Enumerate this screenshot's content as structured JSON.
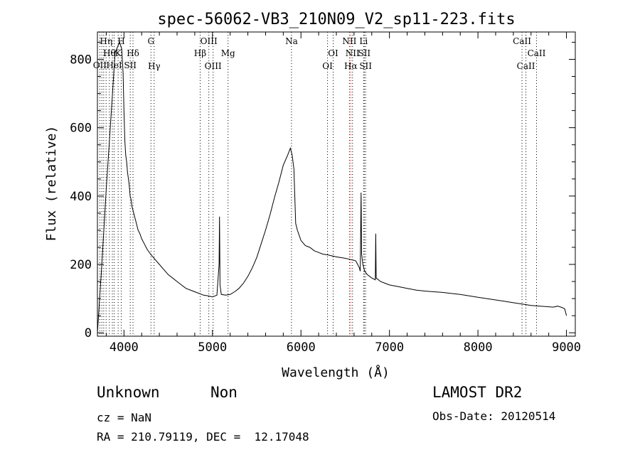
{
  "chart_data": {
    "type": "line",
    "title": "spec-56062-VB3_210N09_V2_sp11-223.fits",
    "xlabel": "Wavelength (Å)",
    "ylabel": "Flux (relative)",
    "xlim": [
      3700,
      9100
    ],
    "ylim": [
      -10,
      880
    ],
    "xticks": [
      4000,
      5000,
      6000,
      7000,
      8000,
      9000
    ],
    "yticks": [
      0,
      200,
      400,
      600,
      800
    ],
    "grid": false,
    "series": [
      {
        "x": [
          3700,
          3750,
          3800,
          3850,
          3900,
          3950,
          3975,
          3990,
          4000,
          4010,
          4020,
          4030,
          4040,
          4050,
          4060,
          4070,
          4080,
          4090,
          4100,
          4120,
          4140,
          4160,
          4180,
          4200,
          4230,
          4260,
          4300,
          4350,
          4400,
          4450,
          4500,
          4550,
          4600,
          4650,
          4700,
          4750,
          4800,
          4850,
          4900,
          4950,
          5000,
          5050,
          5075,
          5080,
          5085,
          5100,
          5150,
          5200,
          5250,
          5300,
          5350,
          5400,
          5450,
          5500,
          5550,
          5600,
          5650,
          5700,
          5750,
          5800,
          5850,
          5880,
          5900,
          5920,
          5940,
          5960,
          5980,
          6000,
          6050,
          6100,
          6150,
          6200,
          6250,
          6300,
          6350,
          6400,
          6450,
          6500,
          6550,
          6580,
          6600,
          6620,
          6640,
          6660,
          6670,
          6680,
          6685,
          6690,
          6700,
          6720,
          6750,
          6800,
          6840,
          6845,
          6850,
          6900,
          6950,
          7000,
          7100,
          7200,
          7300,
          7400,
          7500,
          7600,
          7700,
          7800,
          7900,
          8000,
          8100,
          8200,
          8300,
          8400,
          8500,
          8600,
          8700,
          8800,
          8850,
          8900,
          8950,
          8980,
          9000
        ],
        "values": [
          0,
          200,
          420,
          620,
          820,
          850,
          830,
          760,
          650,
          560,
          520,
          500,
          470,
          450,
          430,
          400,
          390,
          370,
          360,
          340,
          320,
          300,
          290,
          275,
          260,
          245,
          230,
          215,
          200,
          185,
          170,
          160,
          150,
          140,
          130,
          125,
          120,
          115,
          110,
          108,
          105,
          110,
          200,
          340,
          140,
          112,
          110,
          112,
          120,
          130,
          145,
          165,
          190,
          220,
          260,
          300,
          345,
          395,
          440,
          490,
          520,
          540,
          520,
          480,
          320,
          300,
          285,
          270,
          255,
          250,
          240,
          235,
          230,
          228,
          225,
          222,
          220,
          218,
          215,
          213,
          212,
          210,
          200,
          190,
          180,
          410,
          230,
          220,
          200,
          180,
          170,
          160,
          155,
          290,
          160,
          150,
          145,
          140,
          135,
          130,
          125,
          122,
          120,
          118,
          115,
          112,
          108,
          104,
          100,
          96,
          92,
          88,
          84,
          80,
          78,
          76,
          75,
          78,
          74,
          70,
          50
        ]
      }
    ],
    "lines": [
      {
        "w": 3727,
        "name": "OII",
        "row": 3,
        "color": "#000000"
      },
      {
        "w": 3750,
        "name": "",
        "row": 0,
        "color": "#000000"
      },
      {
        "w": 3771,
        "name": "",
        "row": 0,
        "color": "#000000"
      },
      {
        "w": 3798,
        "name": "Hη",
        "row": 1,
        "color": "#000000"
      },
      {
        "w": 3835,
        "name": "Hθ",
        "row": 2,
        "color": "#000000"
      },
      {
        "w": 3869,
        "name": "",
        "row": 0,
        "color": "#000000"
      },
      {
        "w": 3889,
        "name": "HeI",
        "row": 3,
        "color": "#000000"
      },
      {
        "w": 3934,
        "name": "K",
        "row": 2,
        "color": "#000000"
      },
      {
        "w": 3969,
        "name": "H",
        "row": 1,
        "color": "#000000"
      },
      {
        "w": 4071,
        "name": "SII",
        "row": 3,
        "color": "#000000"
      },
      {
        "w": 4102,
        "name": "Hδ",
        "row": 2,
        "color": "#000000"
      },
      {
        "w": 4305,
        "name": "G",
        "row": 1,
        "color": "#000000"
      },
      {
        "w": 4341,
        "name": "Hγ",
        "row": 4,
        "color": "#000000"
      },
      {
        "w": 4861,
        "name": "Hβ",
        "row": 2,
        "color": "#000000"
      },
      {
        "w": 4959,
        "name": "OIII",
        "row": 1,
        "color": "#000000"
      },
      {
        "w": 5007,
        "name": "OIII",
        "row": 4,
        "color": "#000000"
      },
      {
        "w": 5176,
        "name": "Mg",
        "row": 2,
        "color": "#000000"
      },
      {
        "w": 5893,
        "name": "Na",
        "row": 1,
        "color": "#000000"
      },
      {
        "w": 6300,
        "name": "OI",
        "row": 4,
        "color": "#000000"
      },
      {
        "w": 6364,
        "name": "OI",
        "row": 2,
        "color": "#000000"
      },
      {
        "w": 6548,
        "name": "NII",
        "row": 1,
        "color": "#000000"
      },
      {
        "w": 6563,
        "name": "Hα",
        "row": 4,
        "color": "#d00000"
      },
      {
        "w": 6583,
        "name": "NII",
        "row": 2,
        "color": "#000000"
      },
      {
        "w": 6708,
        "name": "Li",
        "row": 1,
        "color": "#000000"
      },
      {
        "w": 6716,
        "name": "SII",
        "row": 2,
        "color": "#000000"
      },
      {
        "w": 6731,
        "name": "SII",
        "row": 4,
        "color": "#000000"
      },
      {
        "w": 8498,
        "name": "CaII",
        "row": 1,
        "color": "#000000"
      },
      {
        "w": 8542,
        "name": "CaII",
        "row": 4,
        "color": "#000000"
      },
      {
        "w": 8662,
        "name": "CaII",
        "row": 2,
        "color": "#000000"
      }
    ]
  },
  "info": {
    "class": "Unknown",
    "subclass": "Non",
    "survey": "LAMOST DR2",
    "cz": "cz = NaN",
    "obs_date": "Obs-Date: 20120514",
    "radec": "RA = 210.79119, DEC =  12.17048"
  }
}
